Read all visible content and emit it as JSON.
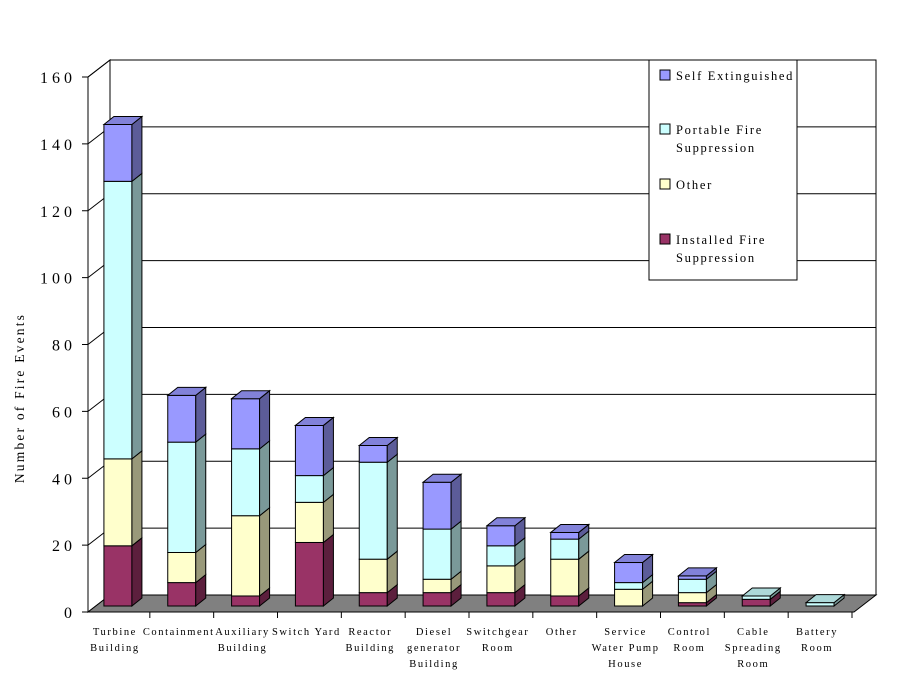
{
  "chart_data": {
    "type": "bar",
    "stacked": true,
    "three_d": true,
    "title": "",
    "xlabel": "",
    "ylabel": "Number of Fire Events",
    "ylim": [
      0,
      160
    ],
    "yticks": [
      0,
      20,
      40,
      60,
      80,
      100,
      120,
      140,
      160
    ],
    "ytick_labels": [
      "0",
      "2 0",
      "4 0",
      "6 0",
      "8 0",
      "1 0 0",
      "1 2 0",
      "1 4 0",
      "1 6 0"
    ],
    "grid": true,
    "legend_position": "top-right",
    "categories": [
      [
        "Turbine",
        "Building"
      ],
      [
        "Containment"
      ],
      [
        "Auxiliary",
        "Building"
      ],
      [
        "Switch Yard"
      ],
      [
        "Reactor",
        "Building"
      ],
      [
        "Diesel",
        "generator",
        "Building"
      ],
      [
        "Switchgear",
        "Room"
      ],
      [
        "Other"
      ],
      [
        "Service",
        "Water Pump",
        "House"
      ],
      [
        "Control",
        "Room"
      ],
      [
        "Cable",
        "Spreading",
        "Room"
      ],
      [
        "Battery",
        "Room"
      ]
    ],
    "series": [
      {
        "name": "Installed Fire Suppression",
        "color": "#993366",
        "values": [
          18,
          7,
          3,
          19,
          4,
          4,
          4,
          3,
          0,
          1,
          2,
          0
        ]
      },
      {
        "name": "Other",
        "color": "#ffffcc",
        "values": [
          26,
          9,
          24,
          12,
          10,
          4,
          8,
          11,
          5,
          3,
          0,
          0
        ]
      },
      {
        "name": "Portable Fire Suppression",
        "color": "#ccffff",
        "values": [
          83,
          33,
          20,
          8,
          29,
          15,
          6,
          6,
          2,
          4,
          1,
          1
        ]
      },
      {
        "name": "Self Extinguished",
        "color": "#9999ff",
        "values": [
          17,
          14,
          15,
          15,
          5,
          14,
          6,
          2,
          6,
          1,
          0,
          0
        ]
      }
    ],
    "legend_entries": [
      {
        "lines": [
          "Self Extinguished"
        ],
        "color": "#9999ff"
      },
      {
        "lines": [
          "Portable Fire",
          "Suppression"
        ],
        "color": "#ccffff"
      },
      {
        "lines": [
          "Other"
        ],
        "color": "#ffffcc"
      },
      {
        "lines": [
          "Installed Fire",
          "Suppression"
        ],
        "color": "#993366"
      }
    ],
    "floor_color": "#808080"
  }
}
